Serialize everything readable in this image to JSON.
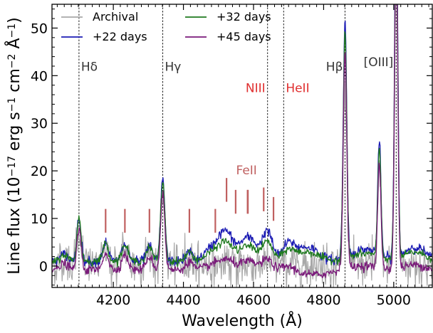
{
  "chart_data": {
    "type": "line",
    "xlabel": "Wavelength (Å)",
    "ylabel": "Line flux (10^-17 erg s^-1 cm^-2 Å^-1)",
    "xlim": [
      4025,
      5110
    ],
    "ylim": [
      -4.5,
      55
    ],
    "xticks": [
      4200,
      4400,
      4600,
      4800,
      5000
    ],
    "yticks": [
      0,
      10,
      20,
      30,
      40,
      50
    ],
    "legend_position": "top-left, two columns",
    "series": [
      {
        "name": "Archival",
        "color": "#a8a8a8"
      },
      {
        "name": "+22 days",
        "color": "#1c1cb4"
      },
      {
        "name": "+32 days",
        "color": "#1f7a1f"
      },
      {
        "name": "+45 days",
        "color": "#7a1a7a"
      }
    ],
    "line_markers": [
      {
        "label": "Hδ",
        "wavelength": 4102,
        "label_flux": 41,
        "color": "#333333"
      },
      {
        "label": "Hγ",
        "wavelength": 4341,
        "label_flux": 41,
        "color": "#333333"
      },
      {
        "label": "NIII",
        "wavelength": 4640,
        "label_flux": 36.5,
        "color": "#e03030"
      },
      {
        "label": "HeII",
        "wavelength": 4686,
        "label_flux": 36.5,
        "color": "#e03030"
      },
      {
        "label": "Hβ",
        "wavelength": 4861,
        "label_flux": 41,
        "color": "#333333"
      },
      {
        "label": "[OIII]",
        "wavelength": 5007,
        "label_flux": 42,
        "color": "#333333"
      }
    ],
    "feii": {
      "label": "FeII",
      "color": "#c06060",
      "wavelengths": [
        4178,
        4233,
        4303,
        4417,
        4491,
        4523,
        4549,
        4583,
        4584,
        4629,
        4657
      ]
    }
  }
}
